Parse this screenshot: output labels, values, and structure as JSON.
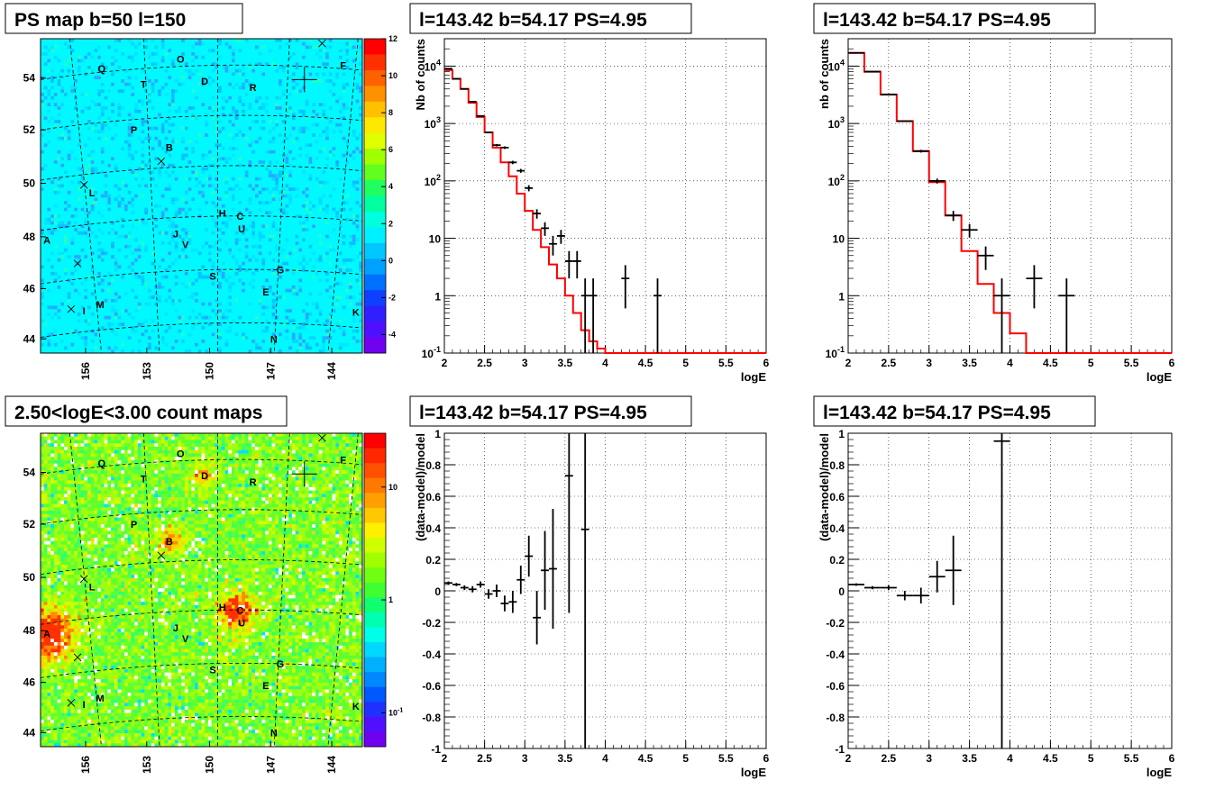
{
  "colors": {
    "data": "#000000",
    "model": "#ff0000",
    "frame": "#000000",
    "grid": "#000000"
  },
  "chart_data": [
    {
      "id": "ps_map",
      "type": "heatmap",
      "title": "PS map b=50 l=150",
      "x_ticks": [
        "156",
        "153",
        "150",
        "147",
        "144"
      ],
      "y_ticks": [
        "44",
        "46",
        "48",
        "50",
        "52",
        "54"
      ],
      "colorbar": {
        "scale": "linear",
        "range": [
          -5,
          12
        ],
        "ticks": [
          "12",
          "10",
          "8",
          "6",
          "4",
          "2",
          "0",
          "-2",
          "-4"
        ]
      },
      "dominant_value": 0.7,
      "labels": [
        "Q",
        "O",
        "D",
        "R",
        "T",
        "F",
        "P",
        "B",
        "L",
        "H",
        "C",
        "U",
        "J",
        "V",
        "A",
        "G",
        "S",
        "E",
        "M",
        "I",
        "K",
        "N"
      ]
    },
    {
      "id": "count_map",
      "type": "heatmap",
      "title": "2.50<logE<3.00 count maps",
      "x_ticks": [
        "156",
        "153",
        "150",
        "147",
        "144"
      ],
      "y_ticks": [
        "44",
        "46",
        "48",
        "50",
        "52",
        "54"
      ],
      "colorbar": {
        "scale": "log",
        "range": [
          0.05,
          30
        ],
        "ticks": [
          "10",
          "1",
          "10-1"
        ]
      },
      "labels": [
        "Q",
        "O",
        "D",
        "R",
        "T",
        "F",
        "P",
        "B",
        "L",
        "H",
        "C",
        "U",
        "J",
        "V",
        "A",
        "G",
        "S",
        "E",
        "M",
        "I",
        "K",
        "N"
      ]
    },
    {
      "id": "spectrum_fine",
      "type": "line",
      "title": "l=143.42 b=54.17 PS=4.95",
      "xlabel": "logE",
      "ylabel": "Nb of counts",
      "xlim": [
        2,
        6
      ],
      "ylim": [
        0.1,
        30000
      ],
      "yscale": "log",
      "grid": true,
      "x_ticks": [
        "2",
        "2.5",
        "3",
        "3.5",
        "4",
        "4.5",
        "5",
        "5.5",
        "6"
      ],
      "y_ticks": [
        "10-1",
        "1",
        "10",
        "102",
        "103",
        "104"
      ],
      "series": [
        {
          "kind": "model",
          "edges": [
            2.0,
            2.1,
            2.2,
            2.3,
            2.4,
            2.5,
            2.6,
            2.7,
            2.8,
            2.9,
            3.0,
            3.1,
            3.2,
            3.3,
            3.4,
            3.5,
            3.6,
            3.7,
            3.8,
            3.9,
            4.0,
            4.1,
            6.0
          ],
          "values": [
            8500,
            6000,
            4000,
            2300,
            1300,
            700,
            380,
            210,
            120,
            60,
            30,
            14,
            7,
            3.5,
            2.0,
            1.0,
            0.5,
            0.25,
            0.16,
            0.12,
            0.1,
            0.1
          ]
        },
        {
          "kind": "data",
          "x": [
            2.05,
            2.15,
            2.25,
            2.35,
            2.45,
            2.55,
            2.65,
            2.75,
            2.85,
            2.95,
            3.05,
            3.15,
            3.25,
            3.35,
            3.45,
            3.55,
            3.65,
            3.75,
            3.85,
            4.25,
            4.65
          ],
          "y": [
            9000,
            6000,
            4000,
            2400,
            1350,
            700,
            420,
            380,
            210,
            150,
            75,
            27,
            15,
            8,
            11,
            4,
            4,
            1,
            1,
            2,
            1
          ],
          "yerr_lo": [
            95,
            77,
            63,
            49,
            37,
            26,
            20,
            19,
            14,
            12,
            9,
            5,
            4,
            3,
            3,
            2,
            2,
            1,
            1,
            1.4,
            1
          ],
          "yerr_hi": [
            95,
            77,
            63,
            49,
            37,
            26,
            20,
            19,
            14,
            12,
            9,
            5,
            4,
            3,
            3,
            2,
            2,
            1,
            1,
            1.4,
            1
          ]
        }
      ]
    },
    {
      "id": "spectrum_coarse",
      "type": "line",
      "title": "l=143.42 b=54.17 PS=4.95",
      "xlabel": "logE",
      "ylabel": "nb of counts",
      "xlim": [
        2,
        6
      ],
      "ylim": [
        0.1,
        30000
      ],
      "yscale": "log",
      "grid": true,
      "x_ticks": [
        "2",
        "2.5",
        "3",
        "3.5",
        "4",
        "4.5",
        "5",
        "5.5",
        "6"
      ],
      "y_ticks": [
        "10-1",
        "1",
        "10",
        "102",
        "103",
        "104"
      ],
      "series": [
        {
          "kind": "model",
          "edges": [
            2.0,
            2.2,
            2.4,
            2.6,
            2.8,
            3.0,
            3.2,
            3.4,
            3.6,
            3.8,
            4.0,
            4.2,
            6.0
          ],
          "values": [
            17000,
            8000,
            3200,
            1100,
            330,
            95,
            25,
            6,
            1.6,
            0.5,
            0.22,
            0.1
          ]
        },
        {
          "kind": "data",
          "x": [
            2.1,
            2.3,
            2.5,
            2.7,
            2.9,
            3.1,
            3.3,
            3.5,
            3.7,
            3.9,
            4.3,
            4.7
          ],
          "y": [
            17000,
            8000,
            3200,
            1100,
            330,
            100,
            25,
            14,
            5,
            1,
            2,
            1
          ],
          "yerr_lo": [
            130,
            89,
            57,
            33,
            18,
            10,
            5,
            3.7,
            2.2,
            1,
            1.4,
            1
          ],
          "yerr_hi": [
            130,
            89,
            57,
            33,
            18,
            10,
            5,
            3.7,
            2.2,
            1,
            1.4,
            1
          ]
        }
      ]
    },
    {
      "id": "residual_fine",
      "type": "scatter",
      "title": "l=143.42 b=54.17 PS=4.95",
      "xlabel": "logE",
      "ylabel": "(data-model)/model",
      "xlim": [
        2,
        6
      ],
      "ylim": [
        -1,
        1
      ],
      "grid": true,
      "x_ticks": [
        "2",
        "2.5",
        "3",
        "3.5",
        "4",
        "4.5",
        "5",
        "5.5",
        "6"
      ],
      "y_ticks": [
        "-1",
        "-0.8",
        "-0.6",
        "-0.4",
        "-0.2",
        "0",
        "0.2",
        "0.4",
        "0.6",
        "0.8",
        "1"
      ],
      "x": [
        2.05,
        2.15,
        2.25,
        2.35,
        2.45,
        2.55,
        2.65,
        2.75,
        2.85,
        2.95,
        3.05,
        3.15,
        3.25,
        3.35,
        3.55,
        3.75
      ],
      "y": [
        0.05,
        0.04,
        0.02,
        0.01,
        0.04,
        -0.02,
        0.0,
        -0.08,
        -0.07,
        0.07,
        0.22,
        -0.17,
        0.13,
        0.14,
        0.73,
        0.39
      ],
      "yerr_lo": [
        0.01,
        0.01,
        0.015,
        0.02,
        0.02,
        0.03,
        0.04,
        0.05,
        0.07,
        0.09,
        0.13,
        0.17,
        0.25,
        0.38,
        0.87,
        1.5
      ],
      "yerr_hi": [
        0.01,
        0.01,
        0.015,
        0.02,
        0.02,
        0.03,
        0.04,
        0.05,
        0.07,
        0.09,
        0.13,
        0.17,
        0.25,
        0.38,
        0.87,
        1.5
      ]
    },
    {
      "id": "residual_coarse",
      "type": "scatter",
      "title": "l=143.42 b=54.17 PS=4.95",
      "xlabel": "logE",
      "ylabel": "(data-model)/model",
      "xlim": [
        2,
        6
      ],
      "ylim": [
        -1,
        1
      ],
      "grid": true,
      "x_ticks": [
        "2",
        "2.5",
        "3",
        "3.5",
        "4",
        "4.5",
        "5",
        "5.5",
        "6"
      ],
      "y_ticks": [
        "-1",
        "-0.8",
        "-0.6",
        "-0.4",
        "-0.2",
        "0",
        "0.2",
        "0.4",
        "0.6",
        "0.8",
        "1"
      ],
      "x": [
        2.1,
        2.3,
        2.5,
        2.7,
        2.9,
        3.1,
        3.3,
        3.9
      ],
      "y": [
        0.04,
        0.02,
        0.02,
        -0.03,
        -0.03,
        0.09,
        0.13,
        0.95
      ],
      "yerr_lo": [
        0.008,
        0.01,
        0.015,
        0.03,
        0.05,
        0.1,
        0.22,
        1.95
      ],
      "yerr_hi": [
        0.008,
        0.01,
        0.015,
        0.03,
        0.05,
        0.1,
        0.22,
        0.05
      ]
    }
  ]
}
